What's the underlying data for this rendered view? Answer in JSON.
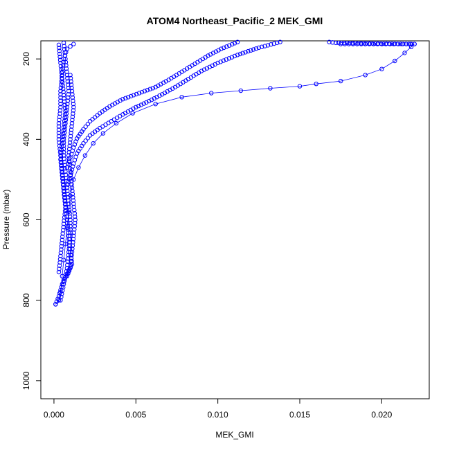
{
  "chart_data": {
    "type": "scatter",
    "title": "ATOM4 Northeast_Pacific_2 MEK_GMI",
    "xlabel": "MEK_GMI",
    "ylabel": "Pressure (mbar)",
    "xlim": [
      -0.0008,
      0.0229
    ],
    "ylim": [
      1045,
      155
    ],
    "y_reversed": true,
    "x_ticks": [
      0.0,
      0.005,
      0.01,
      0.015,
      0.02
    ],
    "x_tick_labels": [
      "0.000",
      "0.005",
      "0.010",
      "0.015",
      "0.020"
    ],
    "y_ticks": [
      200,
      400,
      600,
      800,
      1000
    ],
    "y_tick_labels": [
      "200",
      "400",
      "600",
      "800",
      "1000"
    ],
    "grid": false,
    "marker": "open-circle",
    "color": "#0000ff",
    "series": [
      {
        "style": "points-and-line",
        "points": [
          [
            0.022,
            163
          ],
          [
            0.0218,
            170
          ],
          [
            0.0214,
            185
          ],
          [
            0.0208,
            205
          ],
          [
            0.02,
            225
          ],
          [
            0.019,
            240
          ],
          [
            0.0175,
            255
          ],
          [
            0.016,
            262
          ],
          [
            0.015,
            268
          ],
          [
            0.0132,
            273
          ],
          [
            0.0114,
            279
          ],
          [
            0.0096,
            285
          ],
          [
            0.0078,
            295
          ],
          [
            0.0062,
            312
          ],
          [
            0.0048,
            335
          ],
          [
            0.0038,
            360
          ],
          [
            0.003,
            385
          ],
          [
            0.0024,
            410
          ],
          [
            0.0019,
            440
          ],
          [
            0.0015,
            470
          ],
          [
            0.0012,
            500
          ],
          [
            0.001,
            540
          ],
          [
            0.0009,
            580
          ],
          [
            0.0008,
            620
          ],
          [
            0.0007,
            660
          ],
          [
            0.0006,
            700
          ],
          [
            0.0005,
            740
          ],
          [
            0.0004,
            780
          ],
          [
            0.0003,
            800
          ],
          [
            0.0001,
            810
          ]
        ]
      },
      {
        "style": "points",
        "points": [
          [
            0.0175,
            163
          ],
          [
            0.018,
            163
          ],
          [
            0.0185,
            163
          ],
          [
            0.019,
            163
          ],
          [
            0.0195,
            163
          ],
          [
            0.02,
            163
          ],
          [
            0.0205,
            163
          ],
          [
            0.021,
            163
          ],
          [
            0.0215,
            163
          ],
          [
            0.022,
            163
          ],
          [
            0.0172,
            160
          ],
          [
            0.0168,
            158
          ]
        ]
      },
      {
        "style": "points",
        "points": [
          [
            0.0138,
            158
          ],
          [
            0.0125,
            172
          ],
          [
            0.0112,
            190
          ],
          [
            0.01,
            210
          ],
          [
            0.009,
            230
          ],
          [
            0.0082,
            250
          ],
          [
            0.0074,
            270
          ],
          [
            0.0066,
            288
          ],
          [
            0.0058,
            305
          ],
          [
            0.005,
            320
          ],
          [
            0.0042,
            338
          ],
          [
            0.0035,
            355
          ],
          [
            0.0028,
            372
          ],
          [
            0.0022,
            390
          ],
          [
            0.0018,
            410
          ],
          [
            0.0014,
            435
          ],
          [
            0.0012,
            460
          ],
          [
            0.001,
            490
          ],
          [
            0.0008,
            520
          ]
        ]
      },
      {
        "style": "points",
        "points": [
          [
            0.0112,
            158
          ],
          [
            0.0102,
            175
          ],
          [
            0.0094,
            192
          ],
          [
            0.0086,
            212
          ],
          [
            0.0078,
            232
          ],
          [
            0.007,
            252
          ],
          [
            0.0062,
            270
          ],
          [
            0.0052,
            285
          ],
          [
            0.0042,
            300
          ],
          [
            0.0034,
            318
          ],
          [
            0.0028,
            335
          ],
          [
            0.0022,
            355
          ],
          [
            0.0018,
            375
          ],
          [
            0.0014,
            398
          ],
          [
            0.0012,
            420
          ],
          [
            0.001,
            445
          ],
          [
            0.0008,
            470
          ]
        ]
      },
      {
        "style": "points",
        "points": [
          [
            0.0012,
            163
          ],
          [
            0.0008,
            175
          ],
          [
            0.0006,
            200
          ],
          [
            0.0005,
            240
          ],
          [
            0.0004,
            280
          ],
          [
            0.0004,
            320
          ],
          [
            0.0003,
            360
          ],
          [
            0.0003,
            400
          ],
          [
            0.0004,
            440
          ],
          [
            0.0005,
            480
          ],
          [
            0.0006,
            520
          ],
          [
            0.0007,
            560
          ],
          [
            0.0008,
            600
          ],
          [
            0.0009,
            640
          ],
          [
            0.001,
            680
          ],
          [
            0.0011,
            710
          ],
          [
            0.0008,
            735
          ],
          [
            0.0005,
            760
          ],
          [
            0.0003,
            790
          ],
          [
            0.0001,
            810
          ]
        ]
      },
      {
        "style": "points",
        "points": [
          [
            0.0006,
            160
          ],
          [
            0.0007,
            200
          ],
          [
            0.0008,
            240
          ],
          [
            0.0009,
            280
          ],
          [
            0.0008,
            320
          ],
          [
            0.0007,
            360
          ],
          [
            0.0006,
            400
          ],
          [
            0.0006,
            440
          ],
          [
            0.0007,
            480
          ],
          [
            0.0008,
            520
          ],
          [
            0.0009,
            560
          ],
          [
            0.001,
            600
          ],
          [
            0.001,
            640
          ],
          [
            0.0009,
            680
          ],
          [
            0.0008,
            720
          ],
          [
            0.0006,
            760
          ],
          [
            0.0004,
            800
          ]
        ]
      },
      {
        "style": "points",
        "points": [
          [
            0.0003,
            165
          ],
          [
            0.0004,
            210
          ],
          [
            0.0005,
            250
          ],
          [
            0.0006,
            290
          ],
          [
            0.0007,
            330
          ],
          [
            0.0006,
            370
          ],
          [
            0.0005,
            410
          ],
          [
            0.0004,
            450
          ],
          [
            0.0005,
            490
          ],
          [
            0.0006,
            530
          ],
          [
            0.0007,
            570
          ],
          [
            0.0006,
            610
          ],
          [
            0.0005,
            650
          ],
          [
            0.0004,
            690
          ],
          [
            0.0003,
            730
          ]
        ]
      },
      {
        "style": "points",
        "points": [
          [
            0.001,
            240
          ],
          [
            0.0011,
            280
          ],
          [
            0.0012,
            320
          ],
          [
            0.0011,
            360
          ],
          [
            0.001,
            400
          ],
          [
            0.0009,
            440
          ],
          [
            0.001,
            480
          ],
          [
            0.0011,
            520
          ],
          [
            0.0012,
            560
          ],
          [
            0.0013,
            600
          ],
          [
            0.0012,
            640
          ],
          [
            0.0011,
            680
          ],
          [
            0.001,
            720
          ],
          [
            0.0008,
            740
          ]
        ]
      }
    ]
  }
}
